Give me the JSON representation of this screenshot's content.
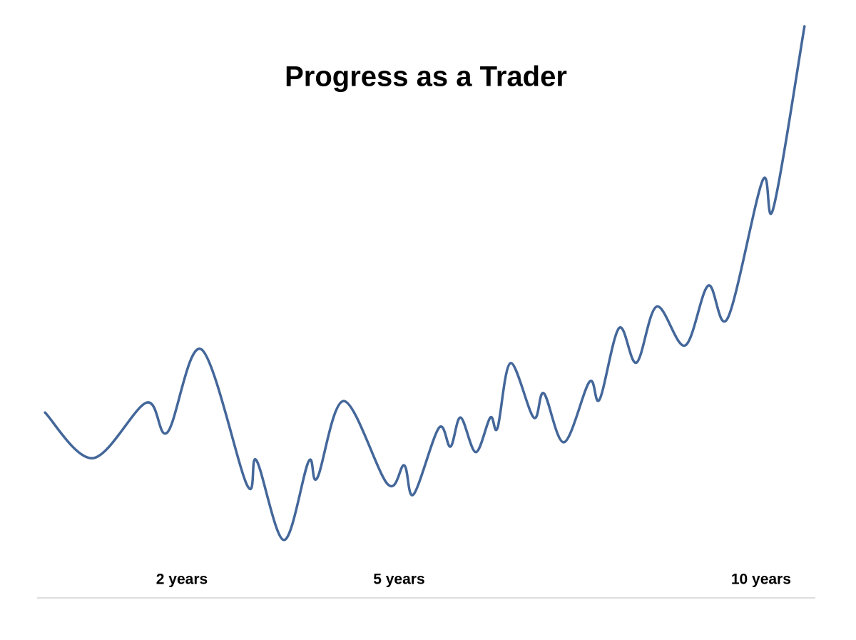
{
  "chart_data": {
    "type": "line",
    "title": "Progress as a Trader",
    "x": [
      0.11,
      0.77,
      1.51,
      1.8,
      2.27,
      2.9,
      3.03,
      3.41,
      3.75,
      3.87,
      4.24,
      4.84,
      5.07,
      5.2,
      5.55,
      5.71,
      5.85,
      6.06,
      6.26,
      6.36,
      6.54,
      6.86,
      7.0,
      7.28,
      7.63,
      7.77,
      8.04,
      8.28,
      8.56,
      8.95,
      9.27,
      9.54,
      10.02,
      10.17,
      10.6
    ],
    "values": [
      28.8,
      20.5,
      30.6,
      25.2,
      40.3,
      15.6,
      20.1,
      5.6,
      19.9,
      16.9,
      30.9,
      15.8,
      19.2,
      13.9,
      26.0,
      22.6,
      27.9,
      21.6,
      27.9,
      26.0,
      37.8,
      27.9,
      32.3,
      23.4,
      34.4,
      31.2,
      44.2,
      37.9,
      48.1,
      41.0,
      51.9,
      46.0,
      71.0,
      66.0,
      99.1
    ],
    "color": "#44679a",
    "xlim": [
      0,
      10.75
    ],
    "xticks": [
      {
        "value": 2,
        "label": "2 years"
      },
      {
        "value": 5,
        "label": "5 years"
      },
      {
        "value": 10,
        "label": "10 years"
      }
    ],
    "ylim": [
      0,
      100
    ]
  }
}
